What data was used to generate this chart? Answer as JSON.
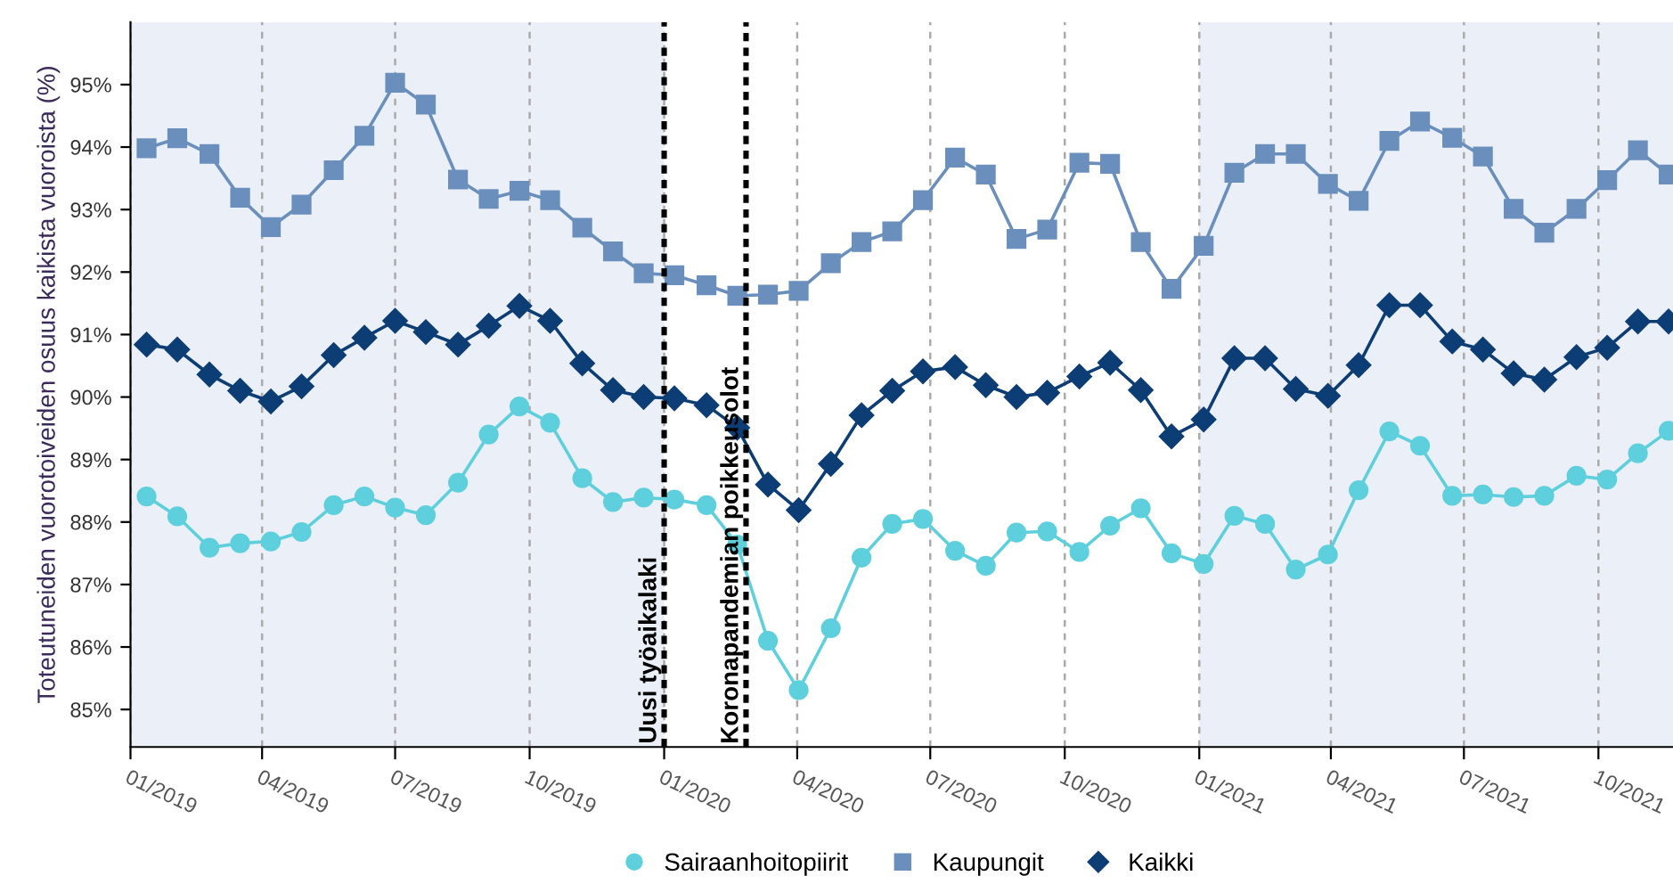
{
  "chart_data": {
    "type": "line",
    "ylabel": "Toteutuneiden vuorotoiveiden osuus kaikista vuoroista (%)",
    "x": [
      "2019-01-12",
      "2019-02-02",
      "2019-02-24",
      "2019-03-17",
      "2019-04-07",
      "2019-04-28",
      "2019-05-20",
      "2019-06-10",
      "2019-07-01",
      "2019-07-22",
      "2019-08-13",
      "2019-09-03",
      "2019-09-24",
      "2019-10-15",
      "2019-11-06",
      "2019-11-27",
      "2019-12-18",
      "2020-01-08",
      "2020-01-30",
      "2020-02-20",
      "2020-03-12",
      "2020-04-02",
      "2020-04-24",
      "2020-05-15",
      "2020-06-05",
      "2020-06-26",
      "2020-07-18",
      "2020-08-08",
      "2020-08-29",
      "2020-09-19",
      "2020-10-11",
      "2020-11-01",
      "2020-11-22",
      "2020-12-13",
      "2021-01-04",
      "2021-01-25",
      "2021-02-15",
      "2021-03-08",
      "2021-03-30",
      "2021-04-20",
      "2021-05-11",
      "2021-06-01",
      "2021-06-23",
      "2021-07-14",
      "2021-08-04",
      "2021-08-25",
      "2021-09-16",
      "2021-10-07",
      "2021-10-28",
      "2021-11-18"
    ],
    "series": [
      {
        "name": "Sairaanhoitopiirit",
        "color": "#5ecfdc",
        "marker": "circle",
        "values": [
          88.41,
          88.09,
          87.59,
          87.66,
          87.69,
          87.84,
          88.27,
          88.41,
          88.23,
          88.11,
          88.63,
          89.4,
          89.85,
          89.59,
          88.7,
          88.32,
          88.39,
          88.36,
          88.27,
          87.64,
          86.1,
          85.31,
          86.3,
          87.43,
          87.97,
          88.05,
          87.54,
          87.3,
          87.83,
          87.85,
          87.52,
          87.94,
          88.22,
          87.5,
          87.33,
          88.1,
          87.97,
          87.24,
          87.48,
          88.51,
          89.45,
          89.22,
          88.42,
          88.44,
          88.4,
          88.42,
          88.74,
          88.68,
          89.1,
          89.46
        ]
      },
      {
        "name": "Kaupungit",
        "color": "#6a8fbd",
        "marker": "square",
        "values": [
          93.98,
          94.14,
          93.89,
          93.19,
          92.72,
          93.08,
          93.63,
          94.18,
          95.03,
          94.68,
          93.48,
          93.17,
          93.3,
          93.15,
          92.71,
          92.33,
          91.98,
          91.95,
          91.79,
          91.62,
          91.64,
          91.7,
          92.14,
          92.48,
          92.65,
          93.15,
          93.83,
          93.56,
          92.53,
          92.68,
          93.75,
          93.73,
          92.48,
          91.73,
          92.42,
          93.59,
          93.89,
          93.89,
          93.41,
          93.14,
          94.1,
          94.41,
          94.15,
          93.85,
          93.01,
          92.63,
          93.01,
          93.47,
          93.95,
          93.56
        ]
      },
      {
        "name": "Kaikki",
        "color": "#0d3d75",
        "marker": "diamond",
        "values": [
          90.84,
          90.76,
          90.36,
          90.1,
          89.93,
          90.17,
          90.67,
          90.95,
          91.22,
          91.04,
          90.84,
          91.14,
          91.46,
          91.22,
          90.54,
          90.11,
          90.0,
          89.98,
          89.87,
          89.51,
          88.6,
          88.19,
          88.93,
          89.71,
          90.1,
          90.41,
          90.48,
          90.19,
          90.0,
          90.07,
          90.33,
          90.55,
          90.11,
          89.37,
          89.64,
          90.62,
          90.62,
          90.13,
          90.02,
          90.51,
          91.47,
          91.47,
          90.89,
          90.76,
          90.38,
          90.28,
          90.64,
          90.79,
          91.21,
          91.21
        ]
      }
    ],
    "xlim": [
      "2019-01-01",
      "2021-11-21"
    ],
    "xticks": [
      {
        "value": "2019-01-01",
        "label": "01/2019"
      },
      {
        "value": "2019-04-01",
        "label": "04/2019"
      },
      {
        "value": "2019-07-01",
        "label": "07/2019"
      },
      {
        "value": "2019-10-01",
        "label": "10/2019"
      },
      {
        "value": "2020-01-01",
        "label": "01/2020"
      },
      {
        "value": "2020-04-01",
        "label": "04/2020"
      },
      {
        "value": "2020-07-01",
        "label": "07/2020"
      },
      {
        "value": "2020-10-01",
        "label": "10/2020"
      },
      {
        "value": "2021-01-01",
        "label": "01/2021"
      },
      {
        "value": "2021-04-01",
        "label": "04/2021"
      },
      {
        "value": "2021-07-01",
        "label": "07/2021"
      },
      {
        "value": "2021-10-01",
        "label": "10/2021"
      }
    ],
    "ylim": [
      84.4,
      96
    ],
    "yticks": [
      {
        "value": 85,
        "label": "85%"
      },
      {
        "value": 86,
        "label": "86%"
      },
      {
        "value": 87,
        "label": "87%"
      },
      {
        "value": 88,
        "label": "88%"
      },
      {
        "value": 89,
        "label": "89%"
      },
      {
        "value": 90,
        "label": "90%"
      },
      {
        "value": 91,
        "label": "91%"
      },
      {
        "value": 92,
        "label": "92%"
      },
      {
        "value": 93,
        "label": "93%"
      },
      {
        "value": 94,
        "label": "94%"
      },
      {
        "value": 95,
        "label": "95%"
      }
    ],
    "grid": "x",
    "legend": "bottom",
    "line_style": "solid",
    "bands": [
      {
        "axis": "x",
        "from": "2019-01-01",
        "to": "2020-01-01",
        "color": "#ebf0f8"
      },
      {
        "axis": "x",
        "from": "2021-01-01",
        "to": "2021-11-21",
        "color": "#ebf0f8"
      }
    ],
    "ref_lines": [
      {
        "axis": "x",
        "value": "2020-01-01",
        "label": "Uusi työaikalaki",
        "color": "#000000",
        "line_style": "dotted"
      },
      {
        "axis": "x",
        "value": "2020-02-26",
        "label": "Koronapandemian poikkeusolot",
        "color": "#000000",
        "line_style": "dotted"
      }
    ]
  }
}
